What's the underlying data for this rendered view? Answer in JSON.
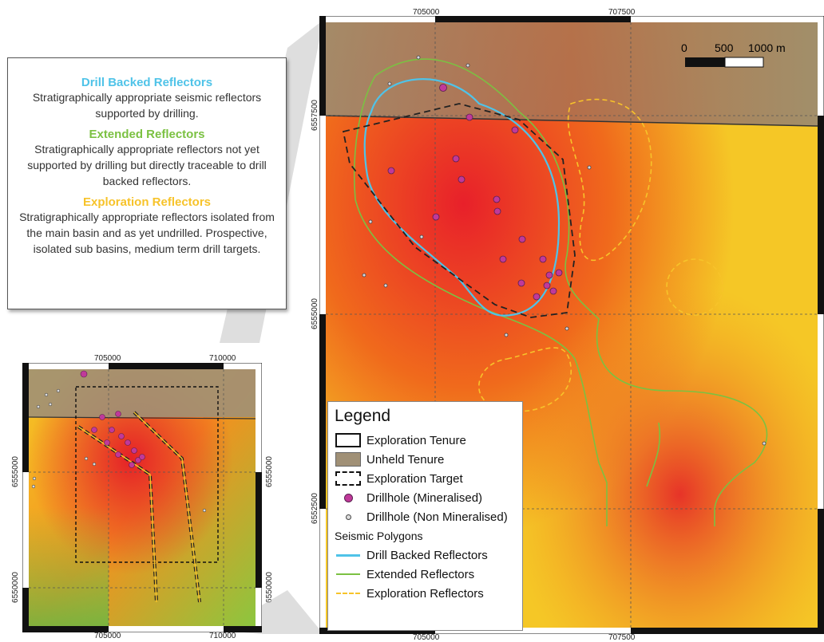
{
  "colors": {
    "drill_backed": "#4fc3e8",
    "extended": "#7bc142",
    "exploration": "#f7c32a",
    "mineralised": "#c0399a",
    "unheld": "#a09076",
    "border": "#111111"
  },
  "info_box": {
    "drill_backed_title": "Drill Backed Reflectors",
    "drill_backed_desc": "Stratigraphically appropriate seismic reflectors supported by drilling.",
    "extended_title": "Extended Reflectors",
    "extended_desc": "Stratigraphically appropriate reflectors not yet supported by drilling but directly traceable to drill backed reflectors.",
    "exploration_title": "Exploration Reflectors",
    "exploration_desc": "Stratigraphically appropriate reflectors isolated from the main basin and as yet undrilled. Prospective, isolated sub basins, medium term drill targets."
  },
  "main_map": {
    "x_ticks": [
      "705000",
      "707500"
    ],
    "y_ticks": [
      "6557500",
      "6555000",
      "6552500"
    ],
    "scale_bar": {
      "labels": [
        "0",
        "500",
        "1000 m"
      ]
    }
  },
  "inset_map": {
    "x_ticks": [
      "705000",
      "710000"
    ],
    "y_ticks": [
      "6555000",
      "6550000"
    ]
  },
  "legend": {
    "title": "Legend",
    "items": [
      {
        "icon": "exploration-tenure-swatch",
        "label": "Exploration Tenure"
      },
      {
        "icon": "unheld-tenure-swatch",
        "label": "Unheld Tenure"
      },
      {
        "icon": "exploration-target-swatch",
        "label": "Exploration Target"
      },
      {
        "icon": "mineralised-drillhole-icon",
        "label": "Drillhole (Mineralised)"
      },
      {
        "icon": "non-mineralised-drillhole-icon",
        "label": "Drillhole (Non Mineralised)"
      }
    ],
    "subheading": "Seismic Polygons",
    "lines": [
      {
        "label": "Drill Backed Reflectors"
      },
      {
        "label": "Extended Reflectors"
      },
      {
        "label": "Exploration Reflectors"
      }
    ]
  }
}
